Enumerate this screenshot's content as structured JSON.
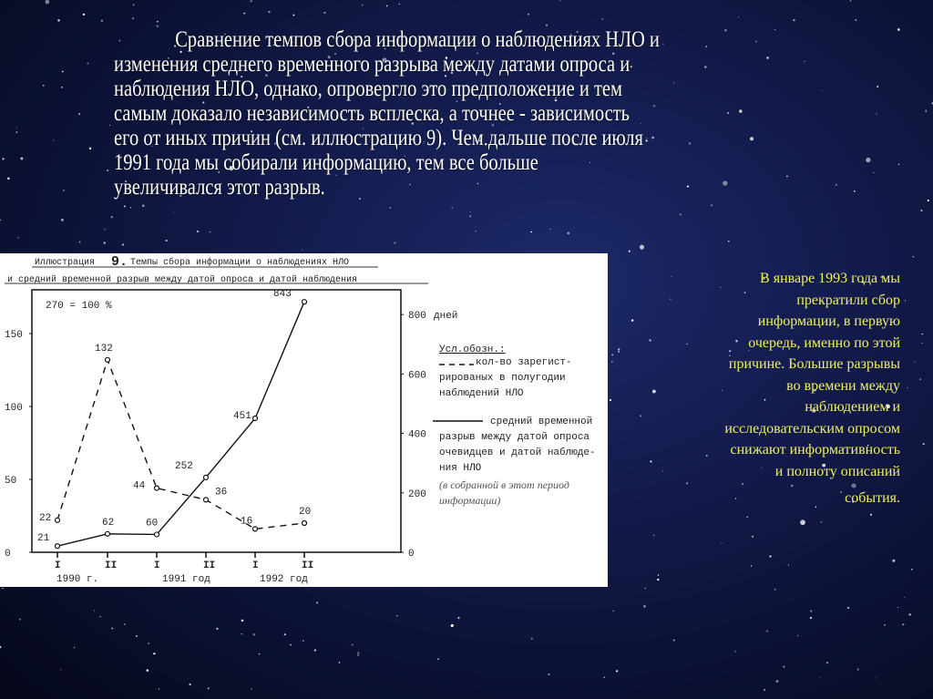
{
  "main_text": {
    "lines": [
      "Сравнение темпов сбора информации о наблюдениях НЛО и",
      "изменения среднего временного разрыва между датами опроса и",
      "наблюдения НЛО, однако, опровергло это предположение и тем",
      "самым доказало независимость всплеска, а точнее - зависимость",
      "его от иных причин (см. иллюстрацию 9). Чем дальше после июля",
      "1991 года мы собирали информацию, тем все больше",
      "увеличивался этот разрыв."
    ]
  },
  "side_text": {
    "lines": [
      "В январе 1993 года мы",
      "прекратили сбор",
      "информации, в первую",
      "очередь, именно по этой",
      "причине. Большие разрывы",
      "во времени между",
      "наблюдением и",
      "исследовательским опросом",
      "снижают информативность",
      "и полноту описаний",
      "события."
    ],
    "color": "#f0f060"
  },
  "chart_data": {
    "type": "line",
    "title_prefix": "Иллюстрация",
    "title_number": "9.",
    "title_line1": "Темпы сбора информации о наблюдениях НЛО",
    "title_line2": "и средний временной разрыв между датой опроса и датой наблюдения",
    "note": "270 = 100 %",
    "categories": [
      "I",
      "II",
      "I",
      "II",
      "I",
      "II"
    ],
    "year_labels": [
      "1990 г.",
      "1991 год",
      "1992 год"
    ],
    "left_axis": {
      "ticks": [
        0,
        50,
        100,
        150
      ],
      "tick_labels": [
        "0",
        "50",
        "100",
        "150"
      ],
      "range": [
        0,
        170
      ]
    },
    "right_axis": {
      "ticks": [
        0,
        200,
        400,
        600,
        800
      ],
      "tick_labels": [
        "0",
        "200",
        "400",
        "600",
        "800"
      ],
      "unit": "дней",
      "range": [
        0,
        880
      ]
    },
    "series": [
      {
        "style": "dashed",
        "axis": "left",
        "values": [
          22,
          132,
          44,
          36,
          16,
          20
        ],
        "labels": [
          "22",
          "132",
          "44",
          "36",
          "16",
          "20"
        ]
      },
      {
        "style": "solid",
        "axis": "right",
        "values": [
          21,
          62,
          60,
          252,
          451,
          843
        ],
        "labels": [
          "21",
          "62",
          "60",
          "252",
          "451",
          "843"
        ]
      }
    ],
    "legend": {
      "heading": "Усл.обозн.:",
      "dashed_lines": [
        "кол-во зарегист-",
        "рированых в полугодии",
        "наблюдений НЛО"
      ],
      "solid_lines": [
        "средний временной",
        "разрыв между датой опроса",
        "очевидцев и датой наблюде-",
        "ния НЛО"
      ],
      "italic_lines": [
        "(в собранной в этот период",
        "информации)"
      ]
    }
  }
}
